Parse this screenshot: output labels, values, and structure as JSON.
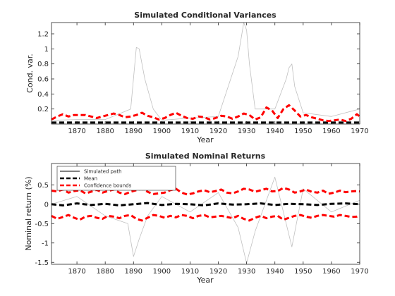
{
  "chart_data": [
    {
      "type": "line",
      "title": "Simulated Conditional Variances",
      "xlabel": "Year",
      "ylabel": "Cond. var.",
      "xlim": [
        1861,
        1970
      ],
      "ylim": [
        0,
        1.35
      ],
      "xticks": [
        1870,
        1880,
        1890,
        1900,
        1910,
        1920,
        1930,
        1940,
        1950,
        1960,
        1970
      ],
      "xtick_labels": [
        "1870",
        "1880",
        "1890",
        "1900",
        "1910",
        "1920",
        "1930",
        "1940",
        "1950",
        "1960",
        "1970"
      ],
      "yticks": [
        0.2,
        0.4,
        0.6,
        0.8,
        1,
        1.2
      ],
      "ytick_labels": [
        "0.2",
        "0.4",
        "0.6",
        "0.8",
        "1",
        "1.2"
      ],
      "grid": false,
      "series": [
        {
          "role": "simulated-paths",
          "color": "#c0c0c0",
          "style": "solid",
          "x": [
            1861,
            1870,
            1880,
            1889,
            1891,
            1892,
            1894,
            1897,
            1900,
            1910,
            1920,
            1927,
            1929,
            1930,
            1931,
            1933,
            1940,
            1944,
            1945,
            1946,
            1947,
            1950,
            1960,
            1970
          ],
          "y": [
            0.05,
            0.06,
            0.06,
            0.2,
            1.02,
            1.0,
            0.6,
            0.2,
            0.05,
            0.08,
            0.1,
            0.9,
            1.35,
            1.25,
            0.8,
            0.2,
            0.2,
            0.6,
            0.75,
            0.8,
            0.5,
            0.15,
            0.1,
            0.2
          ]
        },
        {
          "role": "mean",
          "color": "#000000",
          "style": "dashed",
          "x": [
            1861,
            1870,
            1880,
            1890,
            1900,
            1910,
            1920,
            1930,
            1940,
            1950,
            1960,
            1970
          ],
          "y": [
            0.02,
            0.02,
            0.02,
            0.02,
            0.02,
            0.02,
            0.02,
            0.02,
            0.02,
            0.02,
            0.02,
            0.02
          ]
        },
        {
          "role": "confidence-bound",
          "color": "#ff0000",
          "style": "dashed",
          "x": [
            1861,
            1863,
            1865,
            1867,
            1869,
            1871,
            1873,
            1875,
            1877,
            1879,
            1881,
            1883,
            1885,
            1887,
            1889,
            1891,
            1893,
            1895,
            1897,
            1899,
            1901,
            1903,
            1905,
            1907,
            1909,
            1911,
            1913,
            1915,
            1917,
            1919,
            1921,
            1923,
            1925,
            1927,
            1929,
            1931,
            1933,
            1935,
            1937,
            1939,
            1941,
            1943,
            1945,
            1947,
            1949,
            1951,
            1953,
            1955,
            1957,
            1959,
            1961,
            1963,
            1965,
            1967,
            1969,
            1970
          ],
          "y": [
            0.06,
            0.1,
            0.13,
            0.1,
            0.12,
            0.12,
            0.12,
            0.1,
            0.08,
            0.1,
            0.12,
            0.14,
            0.12,
            0.09,
            0.1,
            0.12,
            0.15,
            0.11,
            0.09,
            0.06,
            0.08,
            0.12,
            0.15,
            0.11,
            0.08,
            0.07,
            0.1,
            0.09,
            0.06,
            0.08,
            0.11,
            0.1,
            0.07,
            0.1,
            0.14,
            0.12,
            0.06,
            0.09,
            0.22,
            0.18,
            0.08,
            0.2,
            0.25,
            0.18,
            0.1,
            0.12,
            0.09,
            0.07,
            0.05,
            0.04,
            0.05,
            0.06,
            0.04,
            0.07,
            0.13,
            0.1
          ]
        }
      ]
    },
    {
      "type": "line",
      "title": "Simulated Nominal Returns",
      "xlabel": "Year",
      "ylabel": "Nominal return (%)",
      "xlim": [
        1861,
        1970
      ],
      "ylim": [
        -1.55,
        1.05
      ],
      "xticks": [
        1870,
        1880,
        1890,
        1900,
        1910,
        1920,
        1930,
        1940,
        1950,
        1960,
        1970
      ],
      "xtick_labels": [
        "1870",
        "1880",
        "1890",
        "1900",
        "1910",
        "1920",
        "1930",
        "1940",
        "1950",
        "1960",
        "1970"
      ],
      "yticks": [
        -1.5,
        -1,
        -0.5,
        0,
        0.5
      ],
      "ytick_labels": [
        "-1.5",
        "-1",
        "-0.5",
        "0",
        "0.5"
      ],
      "grid": false,
      "legend": {
        "placement": "top-left",
        "entries": [
          {
            "label": "Simulated path",
            "color": "#000000",
            "style": "solid"
          },
          {
            "label": "Mean",
            "color": "#000000",
            "style": "dashed"
          },
          {
            "label": "Confidence bounds",
            "color": "#ff0000",
            "style": "dashed"
          }
        ]
      },
      "series": [
        {
          "name": "Simulated path",
          "color": "#c0c0c0",
          "style": "solid",
          "x": [
            1861,
            1870,
            1880,
            1888,
            1890,
            1892,
            1895,
            1900,
            1910,
            1920,
            1927,
            1930,
            1933,
            1940,
            1946,
            1950,
            1960,
            1970
          ],
          "y": [
            0.0,
            0.2,
            -0.3,
            -0.5,
            -1.35,
            -0.9,
            -0.3,
            0.2,
            -0.2,
            0.3,
            -0.6,
            -1.52,
            -0.7,
            0.7,
            -1.1,
            0.4,
            -0.2,
            0.1
          ]
        },
        {
          "name": "Mean",
          "color": "#000000",
          "style": "dashed",
          "x": [
            1861,
            1865,
            1870,
            1875,
            1880,
            1885,
            1890,
            1895,
            1900,
            1905,
            1910,
            1915,
            1920,
            1925,
            1930,
            1935,
            1940,
            1945,
            1950,
            1955,
            1960,
            1965,
            1970
          ],
          "y": [
            0.0,
            -0.03,
            0.02,
            -0.02,
            0.01,
            -0.03,
            0.0,
            0.03,
            -0.02,
            0.01,
            0.0,
            -0.03,
            0.02,
            -0.01,
            0.0,
            0.02,
            -0.02,
            0.01,
            0.0,
            -0.02,
            0.01,
            0.02,
            0.0
          ]
        },
        {
          "name": "Confidence bounds",
          "color": "#ff0000",
          "style": "dashed",
          "x": [
            1861,
            1863,
            1865,
            1867,
            1869,
            1871,
            1873,
            1875,
            1877,
            1879,
            1881,
            1883,
            1885,
            1887,
            1889,
            1891,
            1893,
            1895,
            1897,
            1899,
            1901,
            1903,
            1905,
            1907,
            1909,
            1911,
            1913,
            1915,
            1917,
            1919,
            1921,
            1923,
            1925,
            1927,
            1929,
            1931,
            1933,
            1935,
            1937,
            1939,
            1941,
            1943,
            1945,
            1947,
            1949,
            1951,
            1953,
            1955,
            1957,
            1959,
            1961,
            1963,
            1965,
            1967,
            1969,
            1970
          ],
          "y": [
            0.35,
            0.33,
            0.38,
            0.3,
            0.34,
            0.36,
            0.28,
            0.32,
            0.37,
            0.3,
            0.34,
            0.38,
            0.3,
            0.26,
            0.32,
            0.36,
            0.4,
            0.32,
            0.26,
            0.28,
            0.3,
            0.36,
            0.4,
            0.3,
            0.25,
            0.28,
            0.33,
            0.36,
            0.31,
            0.34,
            0.38,
            0.3,
            0.28,
            0.33,
            0.4,
            0.38,
            0.32,
            0.36,
            0.4,
            0.33,
            0.34,
            0.42,
            0.38,
            0.3,
            0.33,
            0.38,
            0.32,
            0.3,
            0.35,
            0.27,
            0.3,
            0.35,
            0.31,
            0.33,
            0.34,
            0.33
          ]
        },
        {
          "name": "Confidence bounds",
          "color": "#ff0000",
          "style": "dashed",
          "x": [
            1861,
            1863,
            1865,
            1867,
            1869,
            1871,
            1873,
            1875,
            1877,
            1879,
            1881,
            1883,
            1885,
            1887,
            1889,
            1891,
            1893,
            1895,
            1897,
            1899,
            1901,
            1903,
            1905,
            1907,
            1909,
            1911,
            1913,
            1915,
            1917,
            1919,
            1921,
            1923,
            1925,
            1927,
            1929,
            1931,
            1933,
            1935,
            1937,
            1939,
            1941,
            1943,
            1945,
            1947,
            1949,
            1951,
            1953,
            1955,
            1957,
            1959,
            1961,
            1963,
            1965,
            1967,
            1969,
            1970
          ],
          "y": [
            -0.3,
            -0.38,
            -0.33,
            -0.28,
            -0.35,
            -0.4,
            -0.32,
            -0.3,
            -0.35,
            -0.38,
            -0.3,
            -0.32,
            -0.36,
            -0.3,
            -0.28,
            -0.38,
            -0.42,
            -0.35,
            -0.28,
            -0.3,
            -0.35,
            -0.3,
            -0.34,
            -0.28,
            -0.3,
            -0.36,
            -0.3,
            -0.28,
            -0.34,
            -0.32,
            -0.3,
            -0.33,
            -0.36,
            -0.3,
            -0.38,
            -0.42,
            -0.35,
            -0.3,
            -0.36,
            -0.32,
            -0.3,
            -0.4,
            -0.35,
            -0.3,
            -0.28,
            -0.32,
            -0.35,
            -0.3,
            -0.28,
            -0.3,
            -0.32,
            -0.28,
            -0.3,
            -0.33,
            -0.32,
            -0.3
          ]
        }
      ]
    }
  ]
}
